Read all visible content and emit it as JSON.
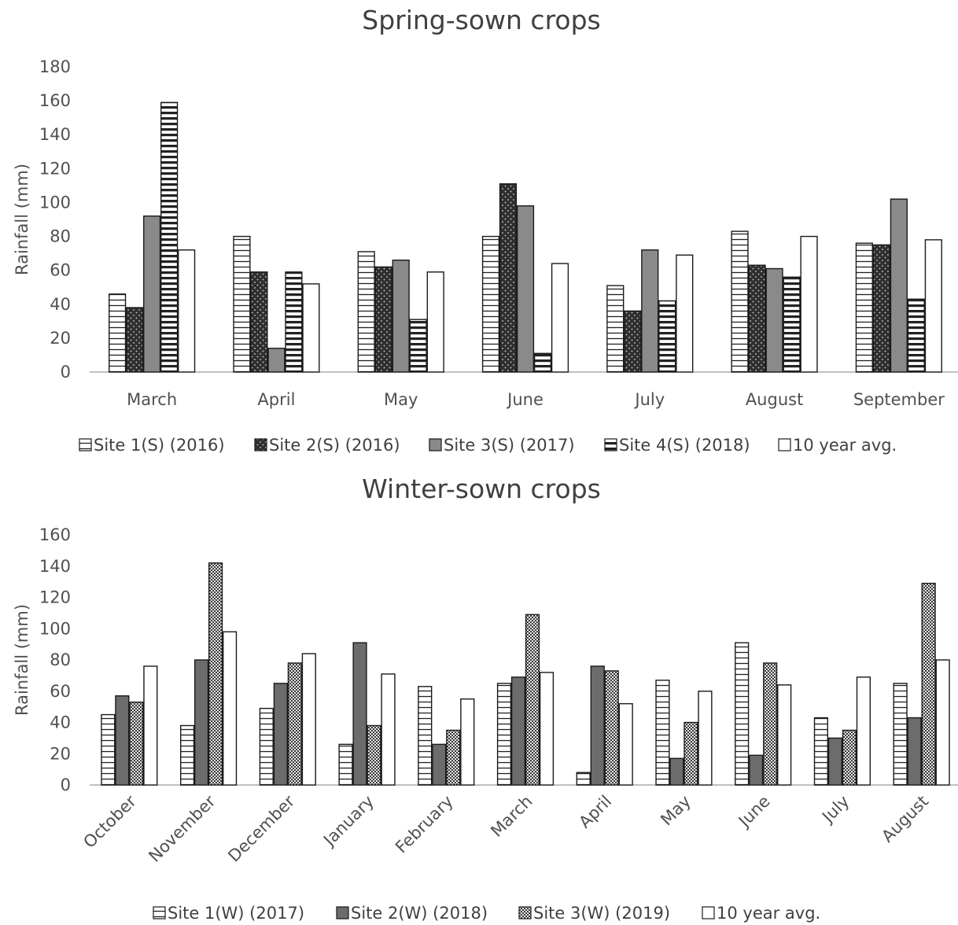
{
  "chart_data": [
    {
      "type": "bar",
      "title": "Spring-sown crops",
      "ylabel": "Rainfall (mm)",
      "xlabel": "",
      "ylim": [
        0,
        180
      ],
      "yticks": [
        0,
        20,
        40,
        60,
        80,
        100,
        120,
        140,
        160,
        180
      ],
      "categories": [
        "March",
        "April",
        "May",
        "June",
        "July",
        "August",
        "September"
      ],
      "series": [
        {
          "name": "Site 1(S) (2016)",
          "pattern": "hlines",
          "values": [
            46,
            80,
            71,
            80,
            51,
            83,
            76
          ]
        },
        {
          "name": "Site 2(S) (2016)",
          "pattern": "dots",
          "values": [
            38,
            59,
            62,
            111,
            36,
            63,
            75
          ]
        },
        {
          "name": "Site 3(S) (2017)",
          "pattern": "gray",
          "values": [
            92,
            14,
            66,
            98,
            72,
            61,
            102
          ]
        },
        {
          "name": "Site 4(S) (2018)",
          "pattern": "thicklines",
          "values": [
            159,
            59,
            31,
            11,
            42,
            56,
            43
          ]
        },
        {
          "name": "10 year avg.",
          "pattern": "white",
          "values": [
            72,
            52,
            59,
            64,
            69,
            80,
            78
          ]
        }
      ],
      "legend_position": "bottom",
      "grid": false
    },
    {
      "type": "bar",
      "title": "Winter-sown crops",
      "ylabel": "Rainfall (mm)",
      "xlabel": "",
      "ylim": [
        0,
        160
      ],
      "yticks": [
        0,
        20,
        40,
        60,
        80,
        100,
        120,
        140,
        160
      ],
      "categories": [
        "October",
        "November",
        "December",
        "January",
        "February",
        "March",
        "April",
        "May",
        "June",
        "July",
        "August"
      ],
      "series": [
        {
          "name": "Site 1(W) (2017)",
          "pattern": "hlines",
          "values": [
            45,
            38,
            49,
            26,
            63,
            65,
            8,
            67,
            91,
            43,
            65
          ]
        },
        {
          "name": "Site 2(W) (2018)",
          "pattern": "darkgray",
          "values": [
            57,
            80,
            65,
            91,
            26,
            69,
            76,
            17,
            19,
            30,
            43
          ]
        },
        {
          "name": "Site 3(W) (2019)",
          "pattern": "checker",
          "values": [
            53,
            142,
            78,
            38,
            35,
            109,
            73,
            40,
            78,
            35,
            129
          ]
        },
        {
          "name": "10 year avg.",
          "pattern": "white",
          "values": [
            76,
            98,
            84,
            71,
            55,
            72,
            52,
            60,
            64,
            69,
            80
          ]
        }
      ],
      "legend_position": "bottom",
      "grid": false
    }
  ]
}
